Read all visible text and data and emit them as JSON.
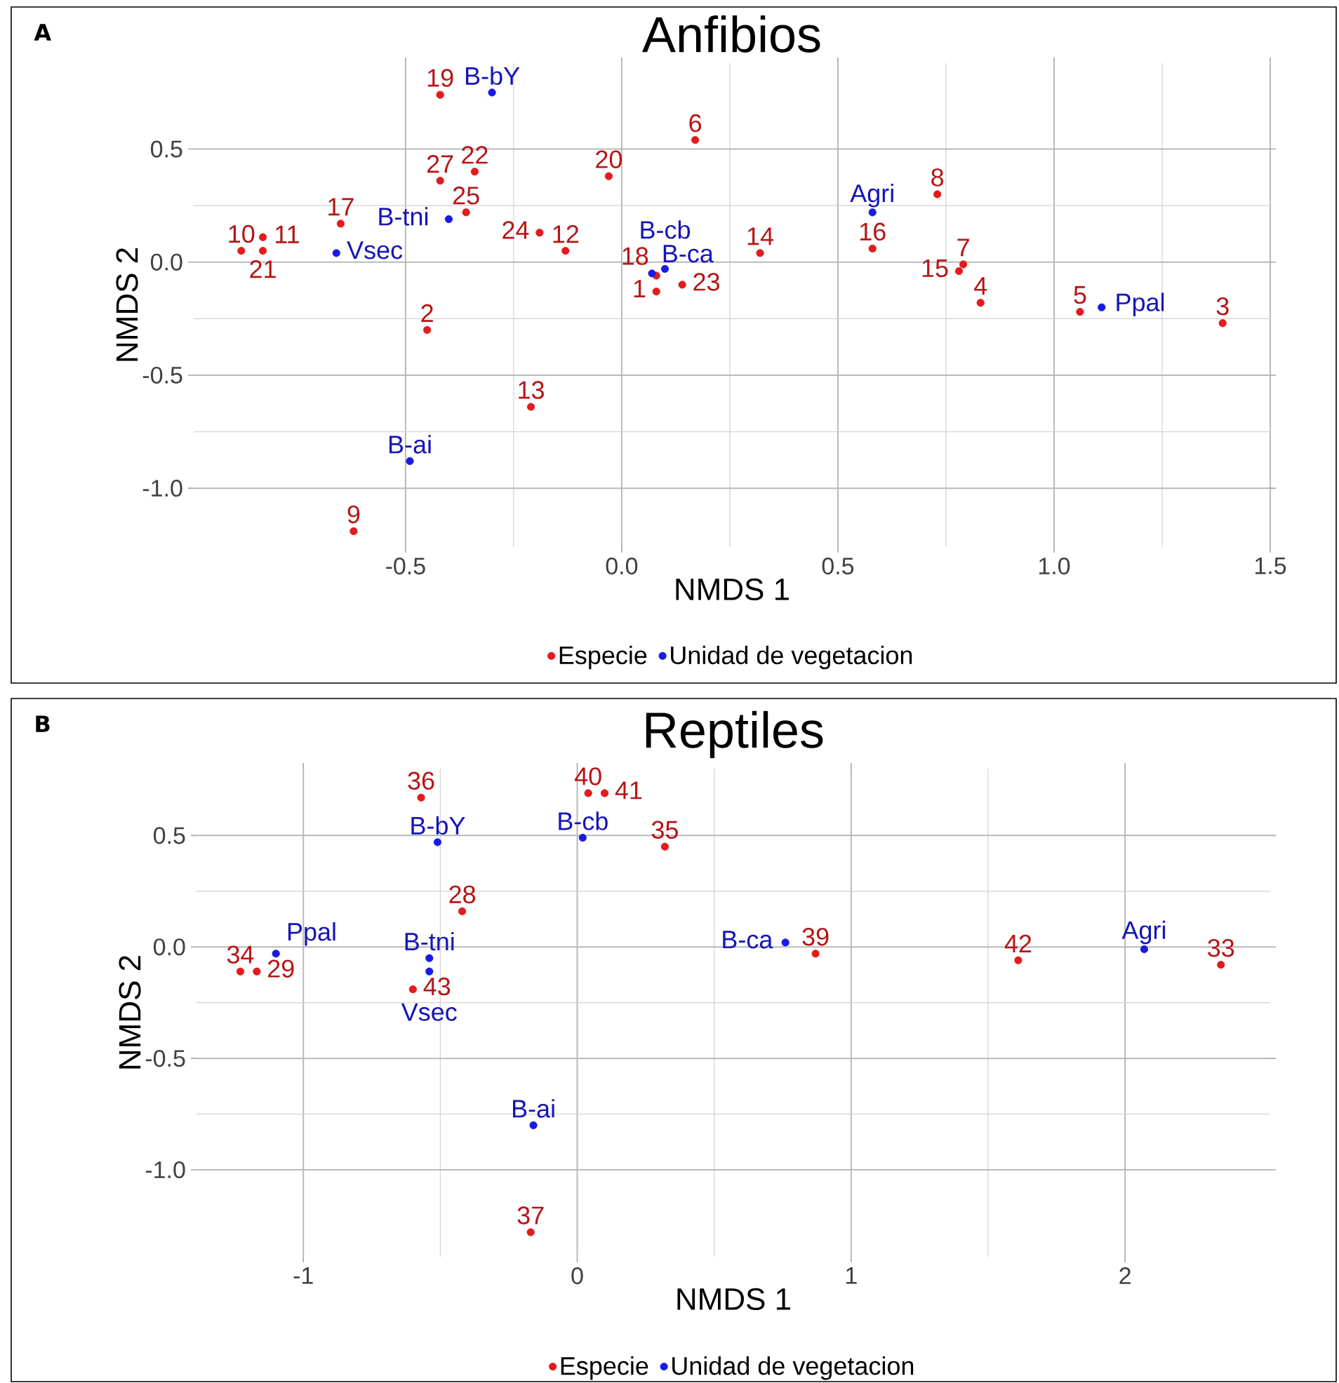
{
  "chart_data": [
    {
      "type": "scatter",
      "title": "Anfibios",
      "xlabel": "NMDS 1",
      "ylabel": "NMDS 2",
      "xlim": [
        -0.99,
        1.5
      ],
      "ylim": [
        -1.26,
        0.88
      ],
      "xticks": [
        {
          "value": -0.5,
          "label": "-0.5"
        },
        {
          "value": 0,
          "label": "0.0"
        },
        {
          "value": 0.5,
          "label": "0.5"
        },
        {
          "value": 1,
          "label": "1.0"
        },
        {
          "value": 1.5,
          "label": "1.5"
        }
      ],
      "yticks": [
        {
          "value": -1,
          "label": "-1.0"
        },
        {
          "value": -0.5,
          "label": "-0.5"
        },
        {
          "value": 0,
          "label": "0.0"
        },
        0.5
      ],
      "grid": true,
      "legend": "bottom",
      "marker": "circle",
      "series": [
        {
          "name": "Especie",
          "color": "#e41a1c",
          "x": [
            0.08,
            -0.45,
            1.39,
            0.83,
            1.06,
            0.17,
            0.79,
            0.73,
            -0.62,
            -0.88,
            -0.83,
            -0.13,
            -0.21,
            0.32,
            0.78,
            0.58,
            -0.65,
            0.08,
            -0.42,
            -0.03,
            -0.83,
            -0.34,
            0.14,
            -0.19,
            -0.36,
            -0.42
          ],
          "values": [
            -0.13,
            -0.3,
            -0.27,
            -0.18,
            -0.22,
            0.54,
            -0.01,
            0.3,
            -1.19,
            0.05,
            0.11,
            0.05,
            -0.64,
            0.04,
            -0.04,
            0.06,
            0.17,
            -0.06,
            0.74,
            0.38,
            0.05,
            0.4,
            -0.1,
            0.13,
            0.22,
            0.36
          ]
        },
        {
          "name": "Unidad de vegetacion",
          "color": "#1a1ae6",
          "x": [
            0.58,
            -0.49,
            -0.3,
            0.07,
            0.1,
            -0.4,
            1.11,
            -0.66
          ],
          "values": [
            0.22,
            -0.88,
            0.75,
            -0.05,
            -0.03,
            0.19,
            -0.2,
            0.04
          ]
        }
      ],
      "annotations": [
        "A",
        {
          "text": "1",
          "x": 0.08,
          "y": -0.13
        },
        {
          "text": "2",
          "x": -0.45,
          "y": -0.3
        },
        {
          "text": "3",
          "x": 1.39,
          "y": -0.27
        },
        {
          "text": "4",
          "x": 0.83,
          "y": -0.18
        },
        {
          "text": "5",
          "x": 1.06,
          "y": -0.22
        },
        {
          "text": "6",
          "x": 0.17,
          "y": 0.54
        },
        {
          "text": "7",
          "x": 0.79,
          "y": -0.01
        },
        {
          "text": "8",
          "x": 0.73,
          "y": 0.3
        },
        {
          "text": "9",
          "x": -0.62,
          "y": -1.19
        },
        {
          "text": "10",
          "x": -0.88,
          "y": 0.05
        },
        {
          "text": "11",
          "x": -0.83,
          "y": 0.11
        },
        {
          "text": "12",
          "x": -0.13,
          "y": 0.05
        },
        {
          "text": "13",
          "x": -0.21,
          "y": -0.64
        },
        {
          "text": "14",
          "x": 0.32,
          "y": 0.04
        },
        {
          "text": "15",
          "x": 0.78,
          "y": -0.04
        },
        {
          "text": "16",
          "x": 0.58,
          "y": 0.06
        },
        {
          "text": "17",
          "x": -0.65,
          "y": 0.17
        },
        {
          "text": "18",
          "x": 0.08,
          "y": -0.06
        },
        {
          "text": "19",
          "x": -0.42,
          "y": 0.74
        },
        {
          "text": "20",
          "x": -0.03,
          "y": 0.38
        },
        {
          "text": "21",
          "x": -0.83,
          "y": 0.05
        },
        {
          "text": "22",
          "x": -0.34,
          "y": 0.4
        },
        {
          "text": "23",
          "x": 0.14,
          "y": -0.1
        },
        {
          "text": "24",
          "x": -0.19,
          "y": 0.13
        },
        {
          "text": "25",
          "x": -0.36,
          "y": 0.22
        },
        {
          "text": "27",
          "x": -0.42,
          "y": 0.36
        },
        {
          "text": "Agri",
          "x": 0.58,
          "y": 0.22
        },
        {
          "text": "B-ai",
          "x": -0.49,
          "y": -0.88
        },
        {
          "text": "B-bY",
          "x": -0.3,
          "y": 0.75
        },
        {
          "text": "B-ca",
          "x": 0.07,
          "y": -0.05
        },
        {
          "text": "B-cb",
          "x": 0.1,
          "y": -0.03
        },
        {
          "text": "B-tni",
          "x": -0.4,
          "y": 0.19
        },
        {
          "text": "Ppal",
          "x": 1.11,
          "y": -0.2
        },
        {
          "text": "Vsec",
          "x": -0.66,
          "y": 0.04
        }
      ]
    },
    {
      "type": "scatter",
      "title": "Reptiles",
      "xlabel": "NMDS 1",
      "ylabel": "NMDS 2",
      "xlim": [
        -1.39,
        2.53
      ],
      "ylim": [
        -1.39,
        0.8
      ],
      "xticks": [
        -1,
        0,
        1,
        2
      ],
      "yticks": [
        {
          "value": -1,
          "label": "-1.0"
        },
        {
          "value": -0.5,
          "label": "-0.5"
        },
        {
          "value": 0,
          "label": "0.0"
        },
        0.5
      ],
      "grid": true,
      "legend": "bottom",
      "marker": "circle",
      "series": [
        {
          "name": "Especie",
          "color": "#e41a1c",
          "x": [
            -0.42,
            -1.17,
            2.35,
            -1.23,
            0.32,
            -0.57,
            -0.17,
            0.87,
            0.04,
            0.1,
            1.61,
            -0.6
          ],
          "values": [
            0.16,
            -0.11,
            -0.08,
            -0.11,
            0.45,
            0.67,
            -1.28,
            -0.03,
            0.69,
            0.69,
            -0.06,
            -0.19
          ]
        },
        {
          "name": "Unidad de vegetacion",
          "color": "#1a1ae6",
          "x": [
            2.07,
            -0.16,
            -0.51,
            0.76,
            0.02,
            -0.54,
            -1.1,
            -0.54
          ],
          "values": [
            -0.01,
            -0.8,
            0.47,
            0.02,
            0.49,
            -0.05,
            -0.03,
            -0.11
          ]
        }
      ],
      "annotations": [
        "B",
        {
          "text": "28",
          "x": -0.42,
          "y": 0.16
        },
        {
          "text": "29",
          "x": -1.17,
          "y": -0.11
        },
        {
          "text": "33",
          "x": 2.35,
          "y": -0.08
        },
        {
          "text": "34",
          "x": -1.23,
          "y": -0.11
        },
        {
          "text": "35",
          "x": 0.32,
          "y": 0.45
        },
        {
          "text": "36",
          "x": -0.57,
          "y": 0.67
        },
        {
          "text": "37",
          "x": -0.17,
          "y": -1.28
        },
        {
          "text": "39",
          "x": 0.87,
          "y": -0.03
        },
        {
          "text": "40",
          "x": 0.04,
          "y": 0.69
        },
        {
          "text": "41",
          "x": 0.1,
          "y": 0.69
        },
        {
          "text": "42",
          "x": 1.61,
          "y": -0.06
        },
        {
          "text": "43",
          "x": -0.6,
          "y": -0.19
        },
        {
          "text": "Agri",
          "x": 2.07,
          "y": -0.01
        },
        {
          "text": "B-ai",
          "x": -0.16,
          "y": -0.8
        },
        {
          "text": "B-bY",
          "x": -0.51,
          "y": 0.47
        },
        {
          "text": "B-ca",
          "x": 0.76,
          "y": 0.02
        },
        {
          "text": "B-cb",
          "x": 0.02,
          "y": 0.49
        },
        {
          "text": "B-tni",
          "x": -0.54,
          "y": -0.05
        },
        {
          "text": "Ppal",
          "x": -1.1,
          "y": -0.03
        },
        {
          "text": "Vsec",
          "x": -0.54,
          "y": -0.11
        }
      ]
    }
  ]
}
